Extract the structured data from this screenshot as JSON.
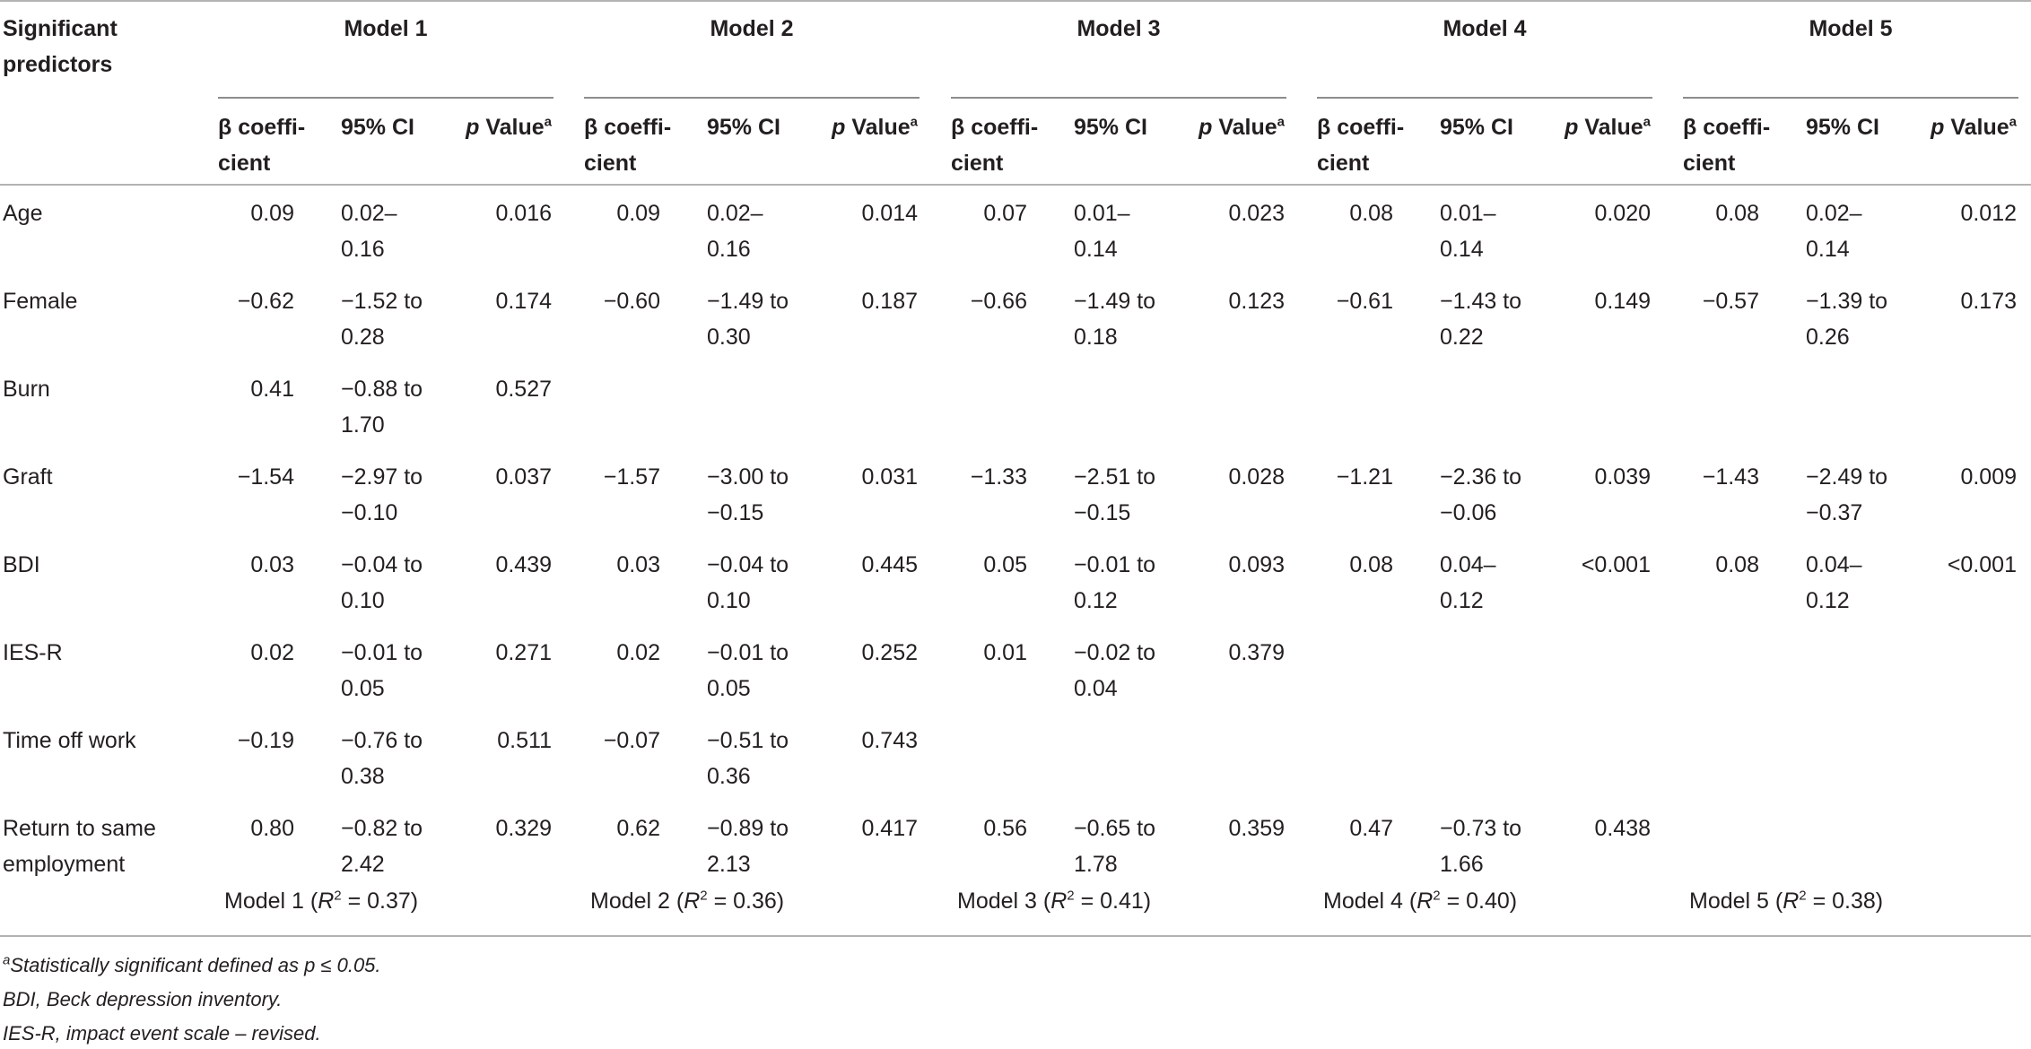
{
  "table": {
    "header": {
      "predictors_label_line1": "Significant",
      "predictors_label_line2": "predictors",
      "models": [
        "Model 1",
        "Model 2",
        "Model 3",
        "Model 4",
        "Model 5"
      ],
      "beta_line1": "β coeffi-",
      "beta_line2": "cient",
      "ci": "95% CI",
      "p_italic": "p",
      "p_rest": " Value",
      "p_sup": "a"
    },
    "rows": [
      {
        "label": [
          "Age"
        ],
        "cells": [
          {
            "beta": "0.09",
            "ci": [
              "0.02–",
              "0.16"
            ],
            "p": "0.016"
          },
          {
            "beta": "0.09",
            "ci": [
              "0.02–",
              "0.16"
            ],
            "p": "0.014"
          },
          {
            "beta": "0.07",
            "ci": [
              "0.01–",
              "0.14"
            ],
            "p": "0.023"
          },
          {
            "beta": "0.08",
            "ci": [
              "0.01–",
              "0.14"
            ],
            "p": "0.020"
          },
          {
            "beta": "0.08",
            "ci": [
              "0.02–",
              "0.14"
            ],
            "p": "0.012"
          }
        ]
      },
      {
        "label": [
          "Female"
        ],
        "cells": [
          {
            "beta": "−0.62",
            "ci": [
              "−1.52 to",
              "0.28"
            ],
            "p": "0.174"
          },
          {
            "beta": "−0.60",
            "ci": [
              "−1.49 to",
              "0.30"
            ],
            "p": "0.187"
          },
          {
            "beta": "−0.66",
            "ci": [
              "−1.49 to",
              "0.18"
            ],
            "p": "0.123"
          },
          {
            "beta": "−0.61",
            "ci": [
              "−1.43 to",
              "0.22"
            ],
            "p": "0.149"
          },
          {
            "beta": "−0.57",
            "ci": [
              "−1.39 to",
              "0.26"
            ],
            "p": "0.173"
          }
        ]
      },
      {
        "label": [
          "Burn"
        ],
        "cells": [
          {
            "beta": "0.41",
            "ci": [
              "−0.88 to",
              "1.70"
            ],
            "p": "0.527"
          },
          null,
          null,
          null,
          null
        ]
      },
      {
        "label": [
          "Graft"
        ],
        "cells": [
          {
            "beta": "−1.54",
            "ci": [
              "−2.97 to",
              "−0.10"
            ],
            "p": "0.037"
          },
          {
            "beta": "−1.57",
            "ci": [
              "−3.00 to",
              "−0.15"
            ],
            "p": "0.031"
          },
          {
            "beta": "−1.33",
            "ci": [
              "−2.51 to",
              "−0.15"
            ],
            "p": "0.028"
          },
          {
            "beta": "−1.21",
            "ci": [
              "−2.36 to",
              "−0.06"
            ],
            "p": "0.039"
          },
          {
            "beta": "−1.43",
            "ci": [
              "−2.49 to",
              "−0.37"
            ],
            "p": "0.009"
          }
        ]
      },
      {
        "label": [
          "BDI"
        ],
        "cells": [
          {
            "beta": "0.03",
            "ci": [
              "−0.04 to",
              "0.10"
            ],
            "p": "0.439"
          },
          {
            "beta": "0.03",
            "ci": [
              "−0.04 to",
              "0.10"
            ],
            "p": "0.445"
          },
          {
            "beta": "0.05",
            "ci": [
              "−0.01 to",
              "0.12"
            ],
            "p": "0.093"
          },
          {
            "beta": "0.08",
            "ci": [
              "0.04–",
              "0.12"
            ],
            "p": "<0.001"
          },
          {
            "beta": "0.08",
            "ci": [
              "0.04–",
              "0.12"
            ],
            "p": "<0.001"
          }
        ]
      },
      {
        "label": [
          "IES-R"
        ],
        "cells": [
          {
            "beta": "0.02",
            "ci": [
              "−0.01 to",
              "0.05"
            ],
            "p": "0.271"
          },
          {
            "beta": "0.02",
            "ci": [
              "−0.01 to",
              "0.05"
            ],
            "p": "0.252"
          },
          {
            "beta": "0.01",
            "ci": [
              "−0.02 to",
              "0.04"
            ],
            "p": "0.379"
          },
          null,
          null
        ]
      },
      {
        "label": [
          "Time off work"
        ],
        "cells": [
          {
            "beta": "−0.19",
            "ci": [
              "−0.76 to",
              "0.38"
            ],
            "p": "0.511"
          },
          {
            "beta": "−0.07",
            "ci": [
              "−0.51 to",
              "0.36"
            ],
            "p": "0.743"
          },
          null,
          null,
          null
        ]
      },
      {
        "label": [
          "Return to same",
          "employment"
        ],
        "cells": [
          {
            "beta": "0.80",
            "ci": [
              "−0.82 to",
              "2.42"
            ],
            "p": "0.329"
          },
          {
            "beta": "0.62",
            "ci": [
              "−0.89 to",
              "2.13"
            ],
            "p": "0.417"
          },
          {
            "beta": "0.56",
            "ci": [
              "−0.65 to",
              "1.78"
            ],
            "p": "0.359"
          },
          {
            "beta": "0.47",
            "ci": [
              "−0.73 to",
              "1.66"
            ],
            "p": "0.438"
          },
          null
        ]
      }
    ],
    "r2": [
      {
        "model": "Model 1",
        "value": "0.37"
      },
      {
        "model": "Model 2",
        "value": "0.36"
      },
      {
        "model": "Model 3",
        "value": "0.41"
      },
      {
        "model": "Model 4",
        "value": "0.40"
      },
      {
        "model": "Model 5",
        "value": "0.38"
      }
    ]
  },
  "footnotes": {
    "a_sup": "a",
    "a_text": "Statistically significant defined as p ≤ 0.05.",
    "bdi": "BDI, Beck depression inventory.",
    "iesr": "IES-R, impact event scale – revised."
  }
}
